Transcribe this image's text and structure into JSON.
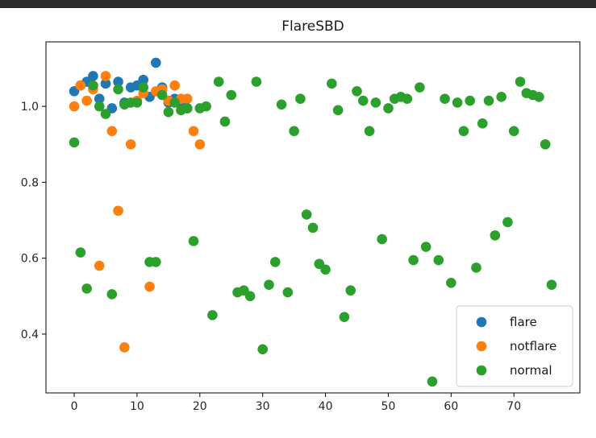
{
  "chart_data": {
    "type": "scatter",
    "title": "FlareSBD",
    "xlabel": "",
    "ylabel": "",
    "xlim": [
      -4.5,
      80.5
    ],
    "ylim": [
      0.245,
      1.17
    ],
    "x_ticks": [
      0,
      10,
      20,
      30,
      40,
      50,
      60,
      70
    ],
    "y_ticks": [
      0.4,
      0.6,
      0.8,
      1.0
    ],
    "y_tick_labels": [
      "0.4",
      "0.6",
      "0.8",
      "1.0"
    ],
    "grid": false,
    "legend_position": "lower-right",
    "series": [
      {
        "name": "flare",
        "color": "#1f77b4",
        "points": [
          [
            0,
            1.04
          ],
          [
            1,
            1.055
          ],
          [
            2,
            1.065
          ],
          [
            3,
            1.08
          ],
          [
            4,
            1.02
          ],
          [
            5,
            1.06
          ],
          [
            6,
            0.995
          ],
          [
            7,
            1.065
          ],
          [
            8,
            1.01
          ],
          [
            9,
            1.05
          ],
          [
            10,
            1.055
          ],
          [
            11,
            1.07
          ],
          [
            12,
            1.025
          ],
          [
            13,
            1.115
          ],
          [
            14,
            1.05
          ],
          [
            15,
            1.01
          ],
          [
            16,
            1.02
          ],
          [
            17,
            1.005
          ],
          [
            18,
            0.995
          ]
        ]
      },
      {
        "name": "notflare",
        "color": "#ff7f0e",
        "points": [
          [
            0,
            1.0
          ],
          [
            1,
            1.055
          ],
          [
            2,
            1.015
          ],
          [
            3,
            1.045
          ],
          [
            4,
            0.58
          ],
          [
            5,
            1.08
          ],
          [
            6,
            0.935
          ],
          [
            7,
            0.725
          ],
          [
            8,
            0.365
          ],
          [
            9,
            0.9
          ],
          [
            10,
            1.015
          ],
          [
            11,
            1.035
          ],
          [
            12,
            0.525
          ],
          [
            13,
            1.04
          ],
          [
            14,
            1.045
          ],
          [
            15,
            1.015
          ],
          [
            16,
            1.055
          ],
          [
            17,
            1.02
          ],
          [
            18,
            1.02
          ],
          [
            19,
            0.935
          ],
          [
            20,
            0.9
          ]
        ]
      },
      {
        "name": "normal",
        "color": "#2ca02c",
        "points": [
          [
            0,
            0.905
          ],
          [
            1,
            0.615
          ],
          [
            2,
            0.52
          ],
          [
            3,
            1.055
          ],
          [
            4,
            1.0
          ],
          [
            5,
            0.98
          ],
          [
            6,
            0.505
          ],
          [
            7,
            1.045
          ],
          [
            8,
            1.005
          ],
          [
            9,
            1.01
          ],
          [
            10,
            1.01
          ],
          [
            11,
            1.05
          ],
          [
            12,
            0.59
          ],
          [
            13,
            0.59
          ],
          [
            14,
            1.03
          ],
          [
            15,
            0.985
          ],
          [
            16,
            1.01
          ],
          [
            17,
            0.99
          ],
          [
            18,
            0.995
          ],
          [
            19,
            0.645
          ],
          [
            20,
            0.995
          ],
          [
            21,
            1.0
          ],
          [
            22,
            0.45
          ],
          [
            23,
            1.065
          ],
          [
            24,
            0.96
          ],
          [
            25,
            1.03
          ],
          [
            26,
            0.51
          ],
          [
            27,
            0.515
          ],
          [
            28,
            0.5
          ],
          [
            29,
            1.065
          ],
          [
            30,
            0.36
          ],
          [
            31,
            0.53
          ],
          [
            32,
            0.59
          ],
          [
            33,
            1.005
          ],
          [
            34,
            0.51
          ],
          [
            35,
            0.935
          ],
          [
            36,
            1.02
          ],
          [
            37,
            0.715
          ],
          [
            38,
            0.68
          ],
          [
            39,
            0.585
          ],
          [
            40,
            0.57
          ],
          [
            41,
            1.06
          ],
          [
            42,
            0.99
          ],
          [
            43,
            0.445
          ],
          [
            44,
            0.515
          ],
          [
            45,
            1.04
          ],
          [
            46,
            1.015
          ],
          [
            47,
            0.935
          ],
          [
            48,
            1.01
          ],
          [
            49,
            0.65
          ],
          [
            50,
            0.995
          ],
          [
            51,
            1.02
          ],
          [
            52,
            1.025
          ],
          [
            53,
            1.02
          ],
          [
            54,
            0.595
          ],
          [
            55,
            1.05
          ],
          [
            56,
            0.63
          ],
          [
            57,
            0.275
          ],
          [
            58,
            0.595
          ],
          [
            59,
            1.02
          ],
          [
            60,
            0.535
          ],
          [
            61,
            1.01
          ],
          [
            62,
            0.935
          ],
          [
            63,
            1.015
          ],
          [
            64,
            0.575
          ],
          [
            65,
            0.955
          ],
          [
            66,
            1.015
          ],
          [
            67,
            0.66
          ],
          [
            68,
            1.025
          ],
          [
            69,
            0.695
          ],
          [
            70,
            0.935
          ],
          [
            71,
            1.065
          ],
          [
            72,
            1.035
          ],
          [
            73,
            1.03
          ],
          [
            74,
            1.025
          ],
          [
            75,
            0.9
          ],
          [
            76,
            0.53
          ]
        ]
      }
    ]
  }
}
